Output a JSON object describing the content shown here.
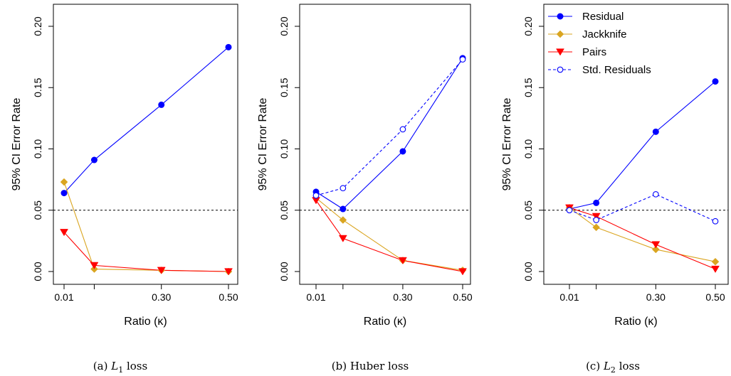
{
  "chart_data": [
    {
      "type": "line",
      "caption": {
        "label": "(a)",
        "math_base": "L",
        "math_sub": "1",
        "text": "loss"
      },
      "xlabel": "Ratio (κ)",
      "ylabel": "95% CI Error Rate",
      "x_ticks": [
        0.01,
        0.1,
        0.3,
        0.5
      ],
      "x_tick_labels": [
        "0.01",
        "",
        "0.30",
        "0.50"
      ],
      "y_ticks": [
        0,
        0.05,
        0.1,
        0.15,
        0.2
      ],
      "y_tick_labels": [
        "0.00",
        "0.05",
        "0.10",
        "0.15",
        "0.20"
      ],
      "xlim": [
        0.01,
        0.5
      ],
      "ylim": [
        0,
        0.2
      ],
      "reference_line": 0.05,
      "legend": null,
      "series": [
        {
          "name": "Residual",
          "x": [
            0.01,
            0.1,
            0.3,
            0.5
          ],
          "values": [
            0.064,
            0.091,
            0.136,
            0.183
          ],
          "color": "#0000ff",
          "marker": "circle-filled",
          "dash": "solid"
        },
        {
          "name": "Jackknife",
          "x": [
            0.01,
            0.1,
            0.3,
            0.5
          ],
          "values": [
            0.073,
            0.002,
            0.001,
            0.0
          ],
          "color": "#daa520",
          "marker": "diamond",
          "dash": "solid"
        },
        {
          "name": "Pairs",
          "x": [
            0.01,
            0.1,
            0.3,
            0.5
          ],
          "values": [
            0.032,
            0.005,
            0.001,
            0.0
          ],
          "color": "#ff0000",
          "marker": "triangle-down",
          "dash": "solid"
        }
      ]
    },
    {
      "type": "line",
      "caption": {
        "label": "(b)",
        "math_base": "",
        "math_sub": "",
        "text": "Huber loss"
      },
      "xlabel": "Ratio (κ)",
      "ylabel": "95% CI Error Rate",
      "x_ticks": [
        0.01,
        0.1,
        0.3,
        0.5
      ],
      "x_tick_labels": [
        "0.01",
        "",
        "0.30",
        "0.50"
      ],
      "y_ticks": [
        0,
        0.05,
        0.1,
        0.15,
        0.2
      ],
      "y_tick_labels": [
        "0.00",
        "0.05",
        "0.10",
        "0.15",
        "0.20"
      ],
      "xlim": [
        0.01,
        0.5
      ],
      "ylim": [
        0,
        0.2
      ],
      "reference_line": 0.05,
      "legend": null,
      "series": [
        {
          "name": "Residual",
          "x": [
            0.01,
            0.1,
            0.3,
            0.5
          ],
          "values": [
            0.065,
            0.051,
            0.098,
            0.174
          ],
          "color": "#0000ff",
          "marker": "circle-filled",
          "dash": "solid"
        },
        {
          "name": "Jackknife",
          "x": [
            0.01,
            0.1,
            0.3,
            0.5
          ],
          "values": [
            0.06,
            0.042,
            0.009,
            0.001
          ],
          "color": "#daa520",
          "marker": "diamond",
          "dash": "solid"
        },
        {
          "name": "Pairs",
          "x": [
            0.01,
            0.1,
            0.3,
            0.5
          ],
          "values": [
            0.058,
            0.027,
            0.009,
            0.0
          ],
          "color": "#ff0000",
          "marker": "triangle-down",
          "dash": "solid"
        },
        {
          "name": "Std. Residuals",
          "x": [
            0.01,
            0.1,
            0.3,
            0.5
          ],
          "values": [
            0.062,
            0.068,
            0.116,
            0.173
          ],
          "color": "#0000ff",
          "marker": "circle-open",
          "dash": "dashed"
        }
      ]
    },
    {
      "type": "line",
      "caption": {
        "label": "(c)",
        "math_base": "L",
        "math_sub": "2",
        "text": "loss"
      },
      "xlabel": "Ratio (κ)",
      "ylabel": "95% CI Error Rate",
      "x_ticks": [
        0.01,
        0.1,
        0.3,
        0.5
      ],
      "x_tick_labels": [
        "0.01",
        "",
        "0.30",
        "0.50"
      ],
      "y_ticks": [
        0,
        0.05,
        0.1,
        0.15,
        0.2
      ],
      "y_tick_labels": [
        "0.00",
        "0.05",
        "0.10",
        "0.15",
        "0.20"
      ],
      "xlim": [
        0.01,
        0.5
      ],
      "ylim": [
        0,
        0.2
      ],
      "reference_line": 0.05,
      "legend": {
        "placement": "top-left",
        "entries": [
          "Residual",
          "Jackknife",
          "Pairs",
          "Std. Residuals"
        ]
      },
      "series": [
        {
          "name": "Residual",
          "x": [
            0.01,
            0.1,
            0.3,
            0.5
          ],
          "values": [
            0.051,
            0.056,
            0.114,
            0.155
          ],
          "color": "#0000ff",
          "marker": "circle-filled",
          "dash": "solid"
        },
        {
          "name": "Jackknife",
          "x": [
            0.01,
            0.1,
            0.3,
            0.5
          ],
          "values": [
            0.052,
            0.036,
            0.018,
            0.008
          ],
          "color": "#daa520",
          "marker": "diamond",
          "dash": "solid"
        },
        {
          "name": "Pairs",
          "x": [
            0.01,
            0.1,
            0.3,
            0.5
          ],
          "values": [
            0.052,
            0.045,
            0.022,
            0.002
          ],
          "color": "#ff0000",
          "marker": "triangle-down",
          "dash": "solid"
        },
        {
          "name": "Std. Residuals",
          "x": [
            0.01,
            0.1,
            0.3,
            0.5
          ],
          "values": [
            0.05,
            0.042,
            0.063,
            0.041
          ],
          "color": "#0000ff",
          "marker": "circle-open",
          "dash": "dashed"
        }
      ]
    }
  ]
}
